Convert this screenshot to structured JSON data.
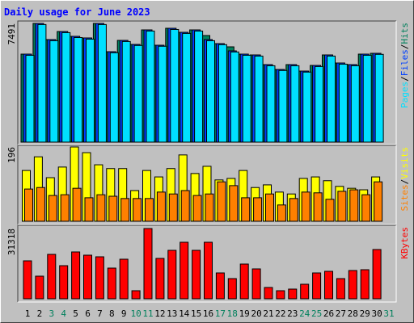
{
  "chart_data": [
    {
      "type": "bar",
      "title": "Daily usage for June 2023",
      "legend_separator": "/",
      "ylim": [
        0,
        7491
      ],
      "yticks": [
        7491
      ],
      "series": [
        {
          "name": "Hits",
          "color": "#00805c",
          "values": [
            5554,
            7491,
            6472,
            6981,
            6676,
            6574,
            7491,
            5707,
            6421,
            6166,
            7083,
            6115,
            7185,
            6930,
            7083,
            6727,
            6217,
            6013,
            5554,
            5503,
            4892,
            4586,
            4892,
            4484,
            4841,
            5503,
            4994,
            4892,
            5554,
            5605,
            null
          ]
        },
        {
          "name": "Files",
          "color": "#0040ff",
          "values": [
            5554,
            7491,
            6472,
            6981,
            6676,
            6574,
            7491,
            5707,
            6421,
            6166,
            7083,
            6115,
            7185,
            6930,
            7083,
            6472,
            6217,
            5758,
            5554,
            5503,
            4892,
            4586,
            4892,
            4484,
            4841,
            5503,
            4994,
            4892,
            5554,
            5605,
            null
          ]
        },
        {
          "name": "Pages",
          "color": "#00e0ff",
          "values": [
            5480,
            7420,
            6400,
            6910,
            6600,
            6500,
            7420,
            5640,
            6350,
            6100,
            7010,
            6050,
            7110,
            6860,
            7010,
            6400,
            6150,
            5690,
            5480,
            5430,
            4820,
            4520,
            4820,
            4420,
            4770,
            5430,
            4920,
            4820,
            5480,
            5540,
            null
          ]
        }
      ]
    },
    {
      "type": "bar",
      "legend_separator": "/",
      "ylim": [
        0,
        196
      ],
      "yticks": [
        196
      ],
      "series": [
        {
          "name": "Visits",
          "color": "#ffff00",
          "values": [
            134,
            170,
            115,
            143,
            196,
            181,
            149,
            139,
            139,
            81,
            134,
            117,
            139,
            175,
            126,
            145,
            109,
            113,
            134,
            89,
            96,
            77,
            72,
            113,
            117,
            107,
            92,
            87,
            83,
            117,
            null
          ]
        },
        {
          "name": "Sites",
          "color": "#ff8000",
          "values": [
            85,
            89,
            68,
            70,
            87,
            62,
            70,
            66,
            60,
            60,
            60,
            77,
            72,
            81,
            68,
            72,
            104,
            94,
            62,
            62,
            72,
            43,
            60,
            77,
            75,
            58,
            79,
            83,
            70,
            104,
            null
          ]
        }
      ]
    },
    {
      "type": "bar",
      "ylim": [
        0,
        31318
      ],
      "yticks": [
        31318
      ],
      "categories": [
        "1",
        "2",
        "3",
        "4",
        "5",
        "6",
        "7",
        "8",
        "9",
        "10",
        "11",
        "12",
        "13",
        "14",
        "15",
        "16",
        "17",
        "18",
        "19",
        "20",
        "21",
        "22",
        "23",
        "24",
        "25",
        "26",
        "27",
        "28",
        "29",
        "30",
        "31"
      ],
      "category_colors": [
        "#000000",
        "#000000",
        "#00805c",
        "#00805c",
        "#000000",
        "#000000",
        "#000000",
        "#000000",
        "#000000",
        "#00805c",
        "#00805c",
        "#000000",
        "#000000",
        "#000000",
        "#000000",
        "#000000",
        "#00805c",
        "#00805c",
        "#000000",
        "#000000",
        "#000000",
        "#000000",
        "#000000",
        "#00805c",
        "#00805c",
        "#000000",
        "#000000",
        "#000000",
        "#000000",
        "#000000",
        "#00805c"
      ],
      "series": [
        {
          "name": "KBytes",
          "color": "#ff0000",
          "values": [
            16919,
            10079,
            19799,
            14759,
            20879,
            19439,
            18719,
            13679,
            17639,
            3600,
            31318,
            17999,
            21599,
            25199,
            21599,
            25199,
            11519,
            8999,
            15479,
            13319,
            5040,
            3600,
            4320,
            6480,
            11519,
            12239,
            8999,
            12599,
            12959,
            21959,
            null
          ]
        }
      ]
    }
  ]
}
